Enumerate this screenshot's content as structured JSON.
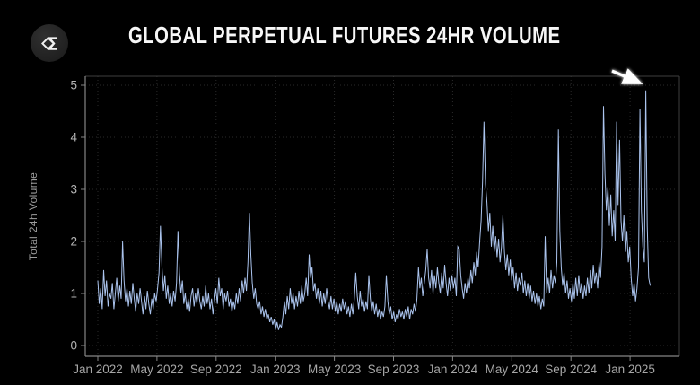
{
  "header": {
    "title": "GLOBAL PERPETUAL FUTURES 24HR VOLUME",
    "logo": {
      "name": "sigma-diamond-logo",
      "circle_color": "#242424",
      "glyph_color": "#ffffff"
    }
  },
  "chart_data": {
    "type": "line",
    "title": "GLOBAL PERPETUAL FUTURES 24HR VOLUME",
    "xlabel": "",
    "ylabel": "Total 24h Volume",
    "x_tick_labels": [
      "Jan 2022",
      "May 2022",
      "Sep 2022",
      "Jan 2023",
      "May 2023",
      "Sep 2023",
      "Jan 2024",
      "May 2024",
      "Sep 2024",
      "Jan 2025"
    ],
    "y_tick_labels": [
      "0",
      "1",
      "2",
      "3",
      "4",
      "5"
    ],
    "ylim": [
      -0.2,
      5.17
    ],
    "grid": {
      "show": true,
      "style": "dotted",
      "color": "#2a2a2a"
    },
    "legend": "none",
    "line_color": "#abc4ee",
    "line_width": 1,
    "background": "#000000",
    "series_name": "Total 24h Volume",
    "series_start": "Jan 2022",
    "series_end": "Feb 2025",
    "sample_interval_days": 3,
    "values": [
      1.25,
      0.8,
      1.1,
      0.7,
      1.45,
      0.95,
      1.25,
      0.75,
      1.0,
      0.9,
      1.2,
      0.7,
      1.0,
      1.3,
      0.85,
      1.15,
      0.9,
      2.0,
      1.25,
      0.85,
      1.1,
      0.75,
      1.05,
      0.8,
      1.2,
      0.9,
      0.65,
      1.0,
      0.8,
      1.1,
      0.85,
      0.6,
      0.95,
      0.7,
      1.05,
      0.8,
      0.6,
      0.9,
      0.7,
      1.0,
      0.85,
      1.1,
      1.4,
      2.3,
      1.5,
      1.05,
      1.35,
      0.9,
      1.15,
      0.8,
      1.0,
      0.75,
      1.05,
      0.85,
      1.2,
      2.2,
      1.4,
      1.0,
      1.25,
      0.8,
      1.0,
      0.7,
      0.9,
      0.65,
      0.95,
      1.1,
      0.75,
      1.0,
      0.8,
      1.1,
      0.85,
      0.7,
      0.95,
      0.75,
      1.15,
      0.8,
      1.0,
      0.7,
      0.9,
      0.6,
      0.85,
      1.1,
      0.8,
      1.3,
      0.95,
      1.1,
      0.7,
      1.0,
      0.85,
      1.05,
      0.75,
      0.9,
      0.65,
      0.85,
      0.7,
      1.0,
      0.8,
      1.1,
      0.85,
      1.25,
      1.0,
      1.3,
      1.05,
      1.6,
      2.55,
      1.75,
      1.2,
      0.9,
      1.1,
      0.8,
      0.7,
      0.85,
      0.6,
      0.75,
      0.55,
      0.7,
      0.5,
      0.6,
      0.45,
      0.55,
      0.4,
      0.5,
      0.3,
      0.45,
      0.3,
      0.4,
      0.35,
      0.55,
      0.85,
      0.6,
      0.95,
      0.7,
      1.1,
      0.8,
      1.0,
      0.7,
      0.95,
      0.75,
      1.05,
      0.8,
      1.15,
      0.85,
      1.0,
      1.3,
      0.95,
      1.75,
      1.3,
      1.5,
      1.05,
      1.2,
      0.9,
      1.1,
      0.8,
      1.05,
      0.75,
      1.0,
      0.8,
      1.1,
      0.85,
      0.7,
      0.95,
      0.7,
      0.9,
      0.65,
      0.85,
      0.6,
      0.8,
      0.65,
      0.9,
      0.7,
      0.85,
      0.6,
      0.75,
      0.55,
      0.8,
      0.6,
      0.9,
      1.4,
      0.95,
      0.7,
      1.05,
      0.75,
      0.9,
      0.65,
      0.85,
      0.7,
      1.35,
      0.9,
      0.65,
      0.85,
      0.6,
      0.8,
      0.55,
      0.7,
      0.5,
      0.65,
      0.55,
      0.75,
      1.35,
      0.85,
      0.6,
      0.75,
      0.5,
      0.65,
      0.45,
      0.6,
      0.5,
      0.7,
      0.55,
      0.65,
      0.5,
      0.7,
      0.55,
      0.75,
      0.5,
      0.7,
      0.6,
      0.8,
      0.65,
      0.9,
      1.5,
      1.1,
      1.3,
      0.95,
      1.2,
      1.45,
      1.85,
      1.3,
      1.1,
      1.45,
      1.0,
      1.35,
      1.1,
      1.5,
      1.2,
      1.0,
      1.4,
      1.1,
      1.55,
      1.2,
      0.95,
      1.3,
      1.05,
      1.35,
      1.1,
      1.3,
      0.95,
      1.9,
      1.85,
      1.35,
      1.1,
      0.9,
      1.2,
      1.0,
      1.3,
      1.1,
      1.45,
      1.2,
      1.6,
      1.35,
      1.8,
      1.5,
      2.0,
      2.4,
      3.15,
      4.3,
      3.1,
      2.75,
      2.2,
      2.55,
      1.9,
      2.3,
      1.8,
      2.1,
      1.7,
      2.05,
      1.6,
      1.9,
      2.5,
      1.8,
      1.45,
      1.75,
      1.35,
      1.65,
      1.25,
      1.5,
      1.1,
      1.4,
      1.05,
      1.3,
      1.15,
      1.4,
      1.0,
      1.25,
      0.95,
      1.2,
      0.9,
      1.15,
      0.85,
      1.05,
      0.8,
      1.0,
      0.75,
      0.95,
      0.7,
      0.9,
      0.75,
      2.1,
      1.0,
      1.3,
      1.0,
      1.45,
      1.1,
      1.35,
      1.2,
      1.6,
      4.15,
      2.2,
      1.5,
      1.15,
      1.4,
      1.0,
      1.25,
      0.9,
      1.1,
      0.85,
      1.2,
      0.9,
      1.3,
      0.95,
      1.35,
      1.0,
      1.2,
      0.9,
      1.15,
      0.95,
      1.3,
      1.0,
      1.45,
      1.1,
      1.55,
      1.2,
      1.4,
      1.1,
      1.6,
      1.3,
      1.9,
      4.6,
      3.3,
      2.6,
      3.05,
      2.3,
      2.9,
      2.1,
      2.6,
      2.0,
      4.3,
      2.7,
      3.95,
      2.4,
      2.0,
      2.5,
      1.8,
      2.2,
      1.6,
      1.9,
      1.3,
      0.95,
      1.2,
      0.85,
      1.1,
      1.5,
      4.55,
      2.6,
      1.9,
      1.6,
      4.9,
      2.3,
      1.3,
      1.15
    ],
    "annotation_arrow": {
      "color": "#ffffff",
      "points_to_value": 4.9,
      "points_to": "final peak at right edge (early 2025)"
    }
  }
}
